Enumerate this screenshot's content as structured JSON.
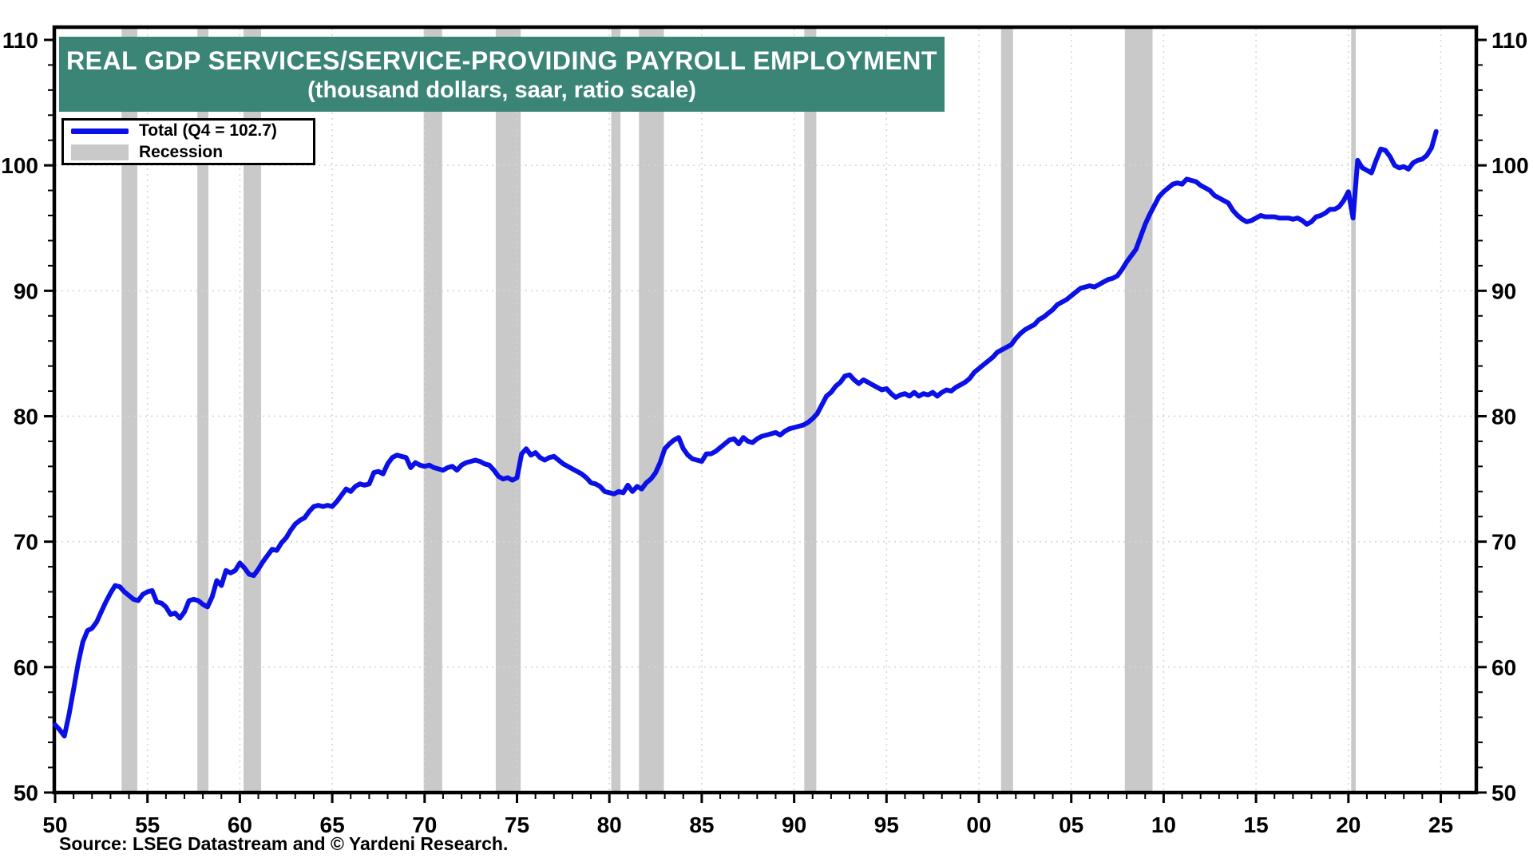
{
  "title": {
    "line1": "REAL GDP SERVICES/SERVICE-PROVIDING PAYROLL EMPLOYMENT",
    "line2": "(thousand dollars, saar, ratio scale)"
  },
  "legend": {
    "total_label": "Total (Q4 = 102.7)",
    "recession_label": "Recession"
  },
  "source": "Source: LSEG Datastream and © Yardeni Research.",
  "colors": {
    "line": "#0a10e6",
    "recession": "#c9c9c9",
    "title_bg": "#3b8577",
    "title_text": "#ffffff",
    "grid": "#d6d6d6",
    "axis": "#000000"
  },
  "chart_data": {
    "type": "line",
    "title": "REAL GDP SERVICES/SERVICE-PROVIDING PAYROLL EMPLOYMENT",
    "subtitle": "(thousand dollars, saar, ratio scale)",
    "y_axis": {
      "scale": "ratio",
      "range": [
        50,
        111
      ],
      "ticks": [
        50,
        60,
        70,
        80,
        90,
        100,
        110
      ],
      "tick_labels": [
        "50",
        "60",
        "70",
        "80",
        "90",
        "100",
        "110"
      ],
      "minor_tick_step": 2,
      "sides": [
        "left",
        "right"
      ]
    },
    "x_axis": {
      "range": [
        1950,
        2026.9
      ],
      "tick_years": [
        1950,
        1955,
        1960,
        1965,
        1970,
        1975,
        1980,
        1985,
        1990,
        1995,
        2000,
        2005,
        2010,
        2015,
        2020,
        2025
      ],
      "tick_labels": [
        "50",
        "55",
        "60",
        "65",
        "70",
        "75",
        "80",
        "85",
        "90",
        "95",
        "00",
        "05",
        "10",
        "15",
        "20",
        "25"
      ],
      "minor_tick_step": 1,
      "gridline_years": [
        1955,
        1960,
        1965,
        1970,
        1975,
        1980,
        1985,
        1990,
        1995,
        2000,
        2005,
        2010,
        2015,
        2020,
        2025
      ]
    },
    "gridline_values": [
      60,
      70,
      80,
      90,
      100
    ],
    "recessions": [
      [
        1953.6,
        1954.45
      ],
      [
        1957.7,
        1958.3
      ],
      [
        1960.2,
        1961.15
      ],
      [
        1969.95,
        1970.95
      ],
      [
        1973.85,
        1975.2
      ],
      [
        1980.1,
        1980.6
      ],
      [
        1981.6,
        1982.95
      ],
      [
        1990.55,
        1991.2
      ],
      [
        2001.2,
        2001.85
      ],
      [
        2007.9,
        2009.4
      ],
      [
        2020.15,
        2020.4
      ]
    ],
    "series": [
      {
        "name": "Total (Q4 = 102.7)",
        "start_year": 1950,
        "step_years": 0.25,
        "values": [
          55.4,
          55.0,
          54.5,
          56.2,
          58.2,
          60.3,
          62.0,
          62.9,
          63.1,
          63.6,
          64.4,
          65.2,
          65.9,
          66.5,
          66.4,
          66.0,
          65.7,
          65.4,
          65.3,
          65.8,
          66.0,
          66.1,
          65.2,
          65.1,
          64.8,
          64.2,
          64.3,
          63.9,
          64.4,
          65.3,
          65.4,
          65.3,
          65.0,
          64.8,
          65.6,
          66.9,
          66.5,
          67.7,
          67.5,
          67.7,
          68.3,
          67.9,
          67.4,
          67.3,
          67.8,
          68.4,
          68.9,
          69.4,
          69.3,
          69.9,
          70.3,
          70.9,
          71.4,
          71.7,
          71.9,
          72.4,
          72.8,
          72.9,
          72.8,
          72.9,
          72.8,
          73.2,
          73.7,
          74.2,
          74.0,
          74.4,
          74.6,
          74.5,
          74.6,
          75.5,
          75.6,
          75.4,
          76.2,
          76.7,
          76.9,
          76.8,
          76.7,
          75.9,
          76.3,
          76.1,
          76.0,
          76.1,
          75.9,
          75.8,
          75.7,
          75.9,
          76.0,
          75.7,
          76.1,
          76.3,
          76.4,
          76.5,
          76.4,
          76.2,
          76.1,
          75.7,
          75.2,
          75.0,
          75.1,
          74.9,
          75.1,
          77.0,
          77.4,
          76.9,
          77.1,
          76.7,
          76.5,
          76.7,
          76.8,
          76.5,
          76.2,
          76.0,
          75.8,
          75.6,
          75.4,
          75.1,
          74.7,
          74.6,
          74.4,
          74.0,
          73.9,
          73.8,
          74.0,
          73.9,
          74.5,
          74.0,
          74.4,
          74.2,
          74.7,
          75.0,
          75.5,
          76.3,
          77.4,
          77.8,
          78.1,
          78.3,
          77.4,
          76.9,
          76.6,
          76.5,
          76.4,
          77.0,
          77.0,
          77.2,
          77.5,
          77.8,
          78.1,
          78.2,
          77.8,
          78.3,
          78.0,
          77.9,
          78.2,
          78.4,
          78.5,
          78.6,
          78.7,
          78.5,
          78.8,
          79.0,
          79.1,
          79.2,
          79.3,
          79.5,
          79.8,
          80.2,
          80.9,
          81.6,
          81.9,
          82.4,
          82.7,
          83.2,
          83.3,
          82.9,
          82.6,
          82.9,
          82.7,
          82.5,
          82.3,
          82.1,
          82.2,
          81.8,
          81.5,
          81.7,
          81.8,
          81.6,
          81.9,
          81.6,
          81.8,
          81.7,
          81.9,
          81.6,
          81.9,
          82.1,
          82.0,
          82.3,
          82.5,
          82.7,
          83.0,
          83.5,
          83.8,
          84.1,
          84.4,
          84.7,
          85.1,
          85.3,
          85.5,
          85.7,
          86.2,
          86.6,
          86.9,
          87.1,
          87.3,
          87.7,
          87.9,
          88.2,
          88.5,
          88.9,
          89.1,
          89.3,
          89.6,
          89.9,
          90.2,
          90.3,
          90.4,
          90.3,
          90.5,
          90.7,
          90.9,
          91.0,
          91.2,
          91.7,
          92.3,
          92.8,
          93.3,
          94.3,
          95.3,
          96.1,
          96.8,
          97.5,
          97.9,
          98.2,
          98.5,
          98.6,
          98.5,
          98.9,
          98.8,
          98.7,
          98.4,
          98.2,
          98.0,
          97.6,
          97.4,
          97.2,
          97.0,
          96.4,
          96.0,
          95.7,
          95.5,
          95.6,
          95.8,
          96.0,
          95.9,
          95.9,
          95.9,
          95.8,
          95.8,
          95.8,
          95.7,
          95.8,
          95.6,
          95.3,
          95.5,
          95.9,
          96.0,
          96.2,
          96.5,
          96.5,
          96.7,
          97.2,
          97.9,
          95.8,
          100.4,
          99.8,
          99.6,
          99.4,
          100.4,
          101.3,
          101.2,
          100.7,
          100.0,
          99.8,
          99.9,
          99.7,
          100.2,
          100.4,
          100.5,
          100.8,
          101.4,
          102.7
        ]
      }
    ],
    "legend": {
      "position": "top-left",
      "entries": [
        "Total (Q4 = 102.7)",
        "Recession"
      ]
    },
    "grid": "dotted"
  }
}
